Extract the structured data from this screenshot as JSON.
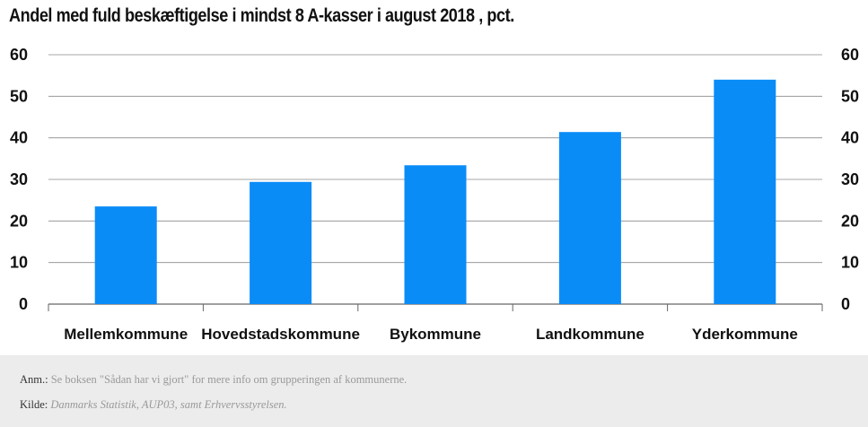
{
  "chart_data": {
    "type": "bar",
    "title": "Andel med fuld beskæftigelse i mindst 8 A-kasser i august 2018 , pct.",
    "categories": [
      "Mellemkommune",
      "Hovedstadskommune",
      "Bykommune",
      "Landkommune",
      "Yderkommune"
    ],
    "values": [
      23.5,
      29.4,
      33.4,
      41.4,
      54.0
    ],
    "ylim": [
      0,
      60
    ],
    "yticks": [
      "0",
      "10",
      "20",
      "30",
      "40",
      "50",
      "60"
    ],
    "grid": true,
    "color": "#0a8cf7"
  },
  "footer": {
    "anm_label": "Anm.:",
    "anm_text": "Se boksen \"Sådan har vi gjort\" for mere info om grupperingen af kommunerne.",
    "kilde_label": "Kilde:",
    "kilde_text": "Danmarks Statistik, AUP03, samt Erhvervsstyrelsen."
  }
}
